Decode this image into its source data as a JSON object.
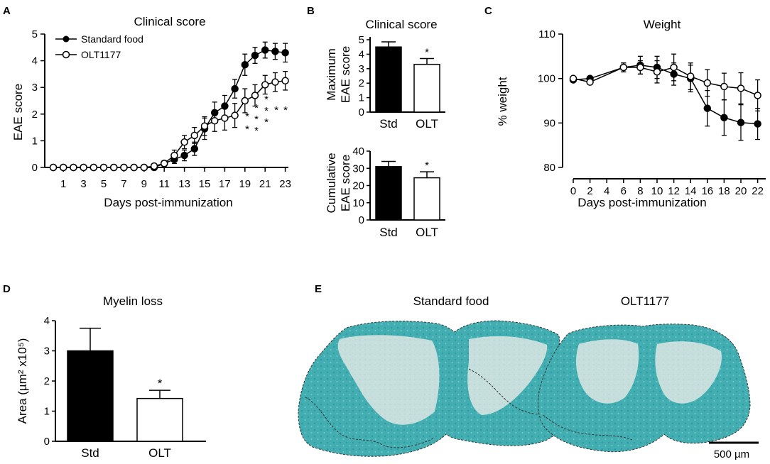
{
  "panels": {
    "A": {
      "letter": "A",
      "chart_data": {
        "type": "line",
        "title": "Clinical score",
        "xlabel": "Days post-immunization",
        "ylabel": "EAE score",
        "ylim": [
          0,
          5
        ],
        "yticks": [
          "0",
          "1",
          "2",
          "3",
          "4",
          "5"
        ],
        "xticks": [
          "1",
          "3",
          "5",
          "7",
          "9",
          "11",
          "13",
          "15",
          "17",
          "19",
          "21",
          "23"
        ],
        "x": [
          0,
          1,
          2,
          3,
          4,
          5,
          6,
          7,
          8,
          9,
          10,
          11,
          12,
          13,
          14,
          15,
          16,
          17,
          18,
          19,
          20,
          21,
          22,
          23
        ],
        "series": [
          {
            "name": "Standard food",
            "marker": "filled",
            "values": [
              0,
              0,
              0,
              0,
              0,
              0,
              0,
              0,
              0,
              0,
              0,
              0.15,
              0.3,
              0.45,
              0.7,
              1.45,
              2.05,
              2.3,
              2.95,
              3.85,
              4.2,
              4.4,
              4.35,
              4.3
            ],
            "err": [
              0,
              0,
              0,
              0,
              0,
              0,
              0,
              0,
              0,
              0,
              0,
              0.1,
              0.15,
              0.2,
              0.25,
              0.4,
              0.4,
              0.4,
              0.35,
              0.4,
              0.3,
              0.3,
              0.3,
              0.35
            ]
          },
          {
            "name": "OLT1177",
            "marker": "open",
            "values": [
              0,
              0,
              0,
              0,
              0,
              0,
              0,
              0,
              0,
              0,
              0.05,
              0.15,
              0.45,
              0.95,
              1.2,
              1.55,
              1.75,
              1.85,
              1.95,
              2.5,
              2.7,
              3.1,
              3.2,
              3.25
            ],
            "err": [
              0,
              0,
              0,
              0,
              0,
              0,
              0,
              0,
              0,
              0,
              0.05,
              0.1,
              0.2,
              0.25,
              0.3,
              0.35,
              0.4,
              0.45,
              0.45,
              0.45,
              0.4,
              0.35,
              0.35,
              0.35
            ]
          }
        ],
        "significance": [
          "*",
          "*",
          "*",
          "*",
          "*",
          "*",
          "*",
          "*",
          "*",
          "*"
        ]
      }
    },
    "B": {
      "letter": "B",
      "title": "Clinical score",
      "top": {
        "chart_data": {
          "type": "bar",
          "ylabel_lines": [
            "Maximum",
            "EAE score"
          ],
          "categories": [
            "Std",
            "OLT"
          ],
          "values": [
            4.5,
            3.3
          ],
          "err": [
            0.35,
            0.4
          ],
          "ylim": [
            0,
            5
          ],
          "yticks": [
            "0",
            "1",
            "2",
            "3",
            "4",
            "5"
          ],
          "significance": "*"
        }
      },
      "bottom": {
        "chart_data": {
          "type": "bar",
          "ylabel_lines": [
            "Cumulative",
            "EAE score"
          ],
          "categories": [
            "Std",
            "OLT"
          ],
          "values": [
            31,
            24.5
          ],
          "err": [
            3,
            3.5
          ],
          "ylim": [
            0,
            40
          ],
          "yticks": [
            "0",
            "10",
            "20",
            "30",
            "40"
          ],
          "significance": "*"
        }
      }
    },
    "C": {
      "letter": "C",
      "chart_data": {
        "type": "line",
        "title": "Weight",
        "xlabel": "Days post-immunization",
        "ylabel": "% weight",
        "ylim": [
          80,
          110
        ],
        "yticks": [
          "80",
          "90",
          "100",
          "110"
        ],
        "xticks": [
          "0",
          "2",
          "4",
          "6",
          "8",
          "10",
          "12",
          "14",
          "16",
          "18",
          "20",
          "22"
        ],
        "x": [
          0,
          2,
          6,
          8,
          10,
          12,
          14,
          16,
          18,
          20,
          22
        ],
        "series": [
          {
            "name": "Standard food",
            "marker": "filled",
            "values": [
              99.7,
              100,
              102.5,
              103,
              102.5,
              101,
              100,
              93.3,
              91.2,
              90.1,
              89.8
            ],
            "err": [
              0.3,
              0.3,
              1,
              2,
              2.5,
              2.5,
              3,
              4,
              4,
              4,
              3.5
            ]
          },
          {
            "name": "OLT1177",
            "marker": "open",
            "values": [
              100,
              99.2,
              102.5,
              102.5,
              101.5,
              102.5,
              100.5,
              99,
              98.2,
              97.8,
              96.2
            ],
            "err": [
              0.3,
              0.3,
              1,
              1.5,
              2.5,
              3,
              3,
              3,
              3,
              3.5,
              3.5
            ]
          }
        ]
      }
    },
    "D": {
      "letter": "D",
      "chart_data": {
        "type": "bar",
        "title": "Myelin loss",
        "ylabel": "Area (µm² x10⁵)",
        "categories": [
          "Std",
          "OLT"
        ],
        "values": [
          3.0,
          1.42
        ],
        "err": [
          0.75,
          0.27
        ],
        "ylim": [
          0,
          4
        ],
        "yticks": [
          "0",
          "1",
          "2",
          "3",
          "4"
        ],
        "significance": "*"
      }
    },
    "E": {
      "letter": "E",
      "label_left": "Standard food",
      "label_right": "OLT1177",
      "scale_bar": "500 µm",
      "tissue_color": "#3aa7ad"
    }
  }
}
